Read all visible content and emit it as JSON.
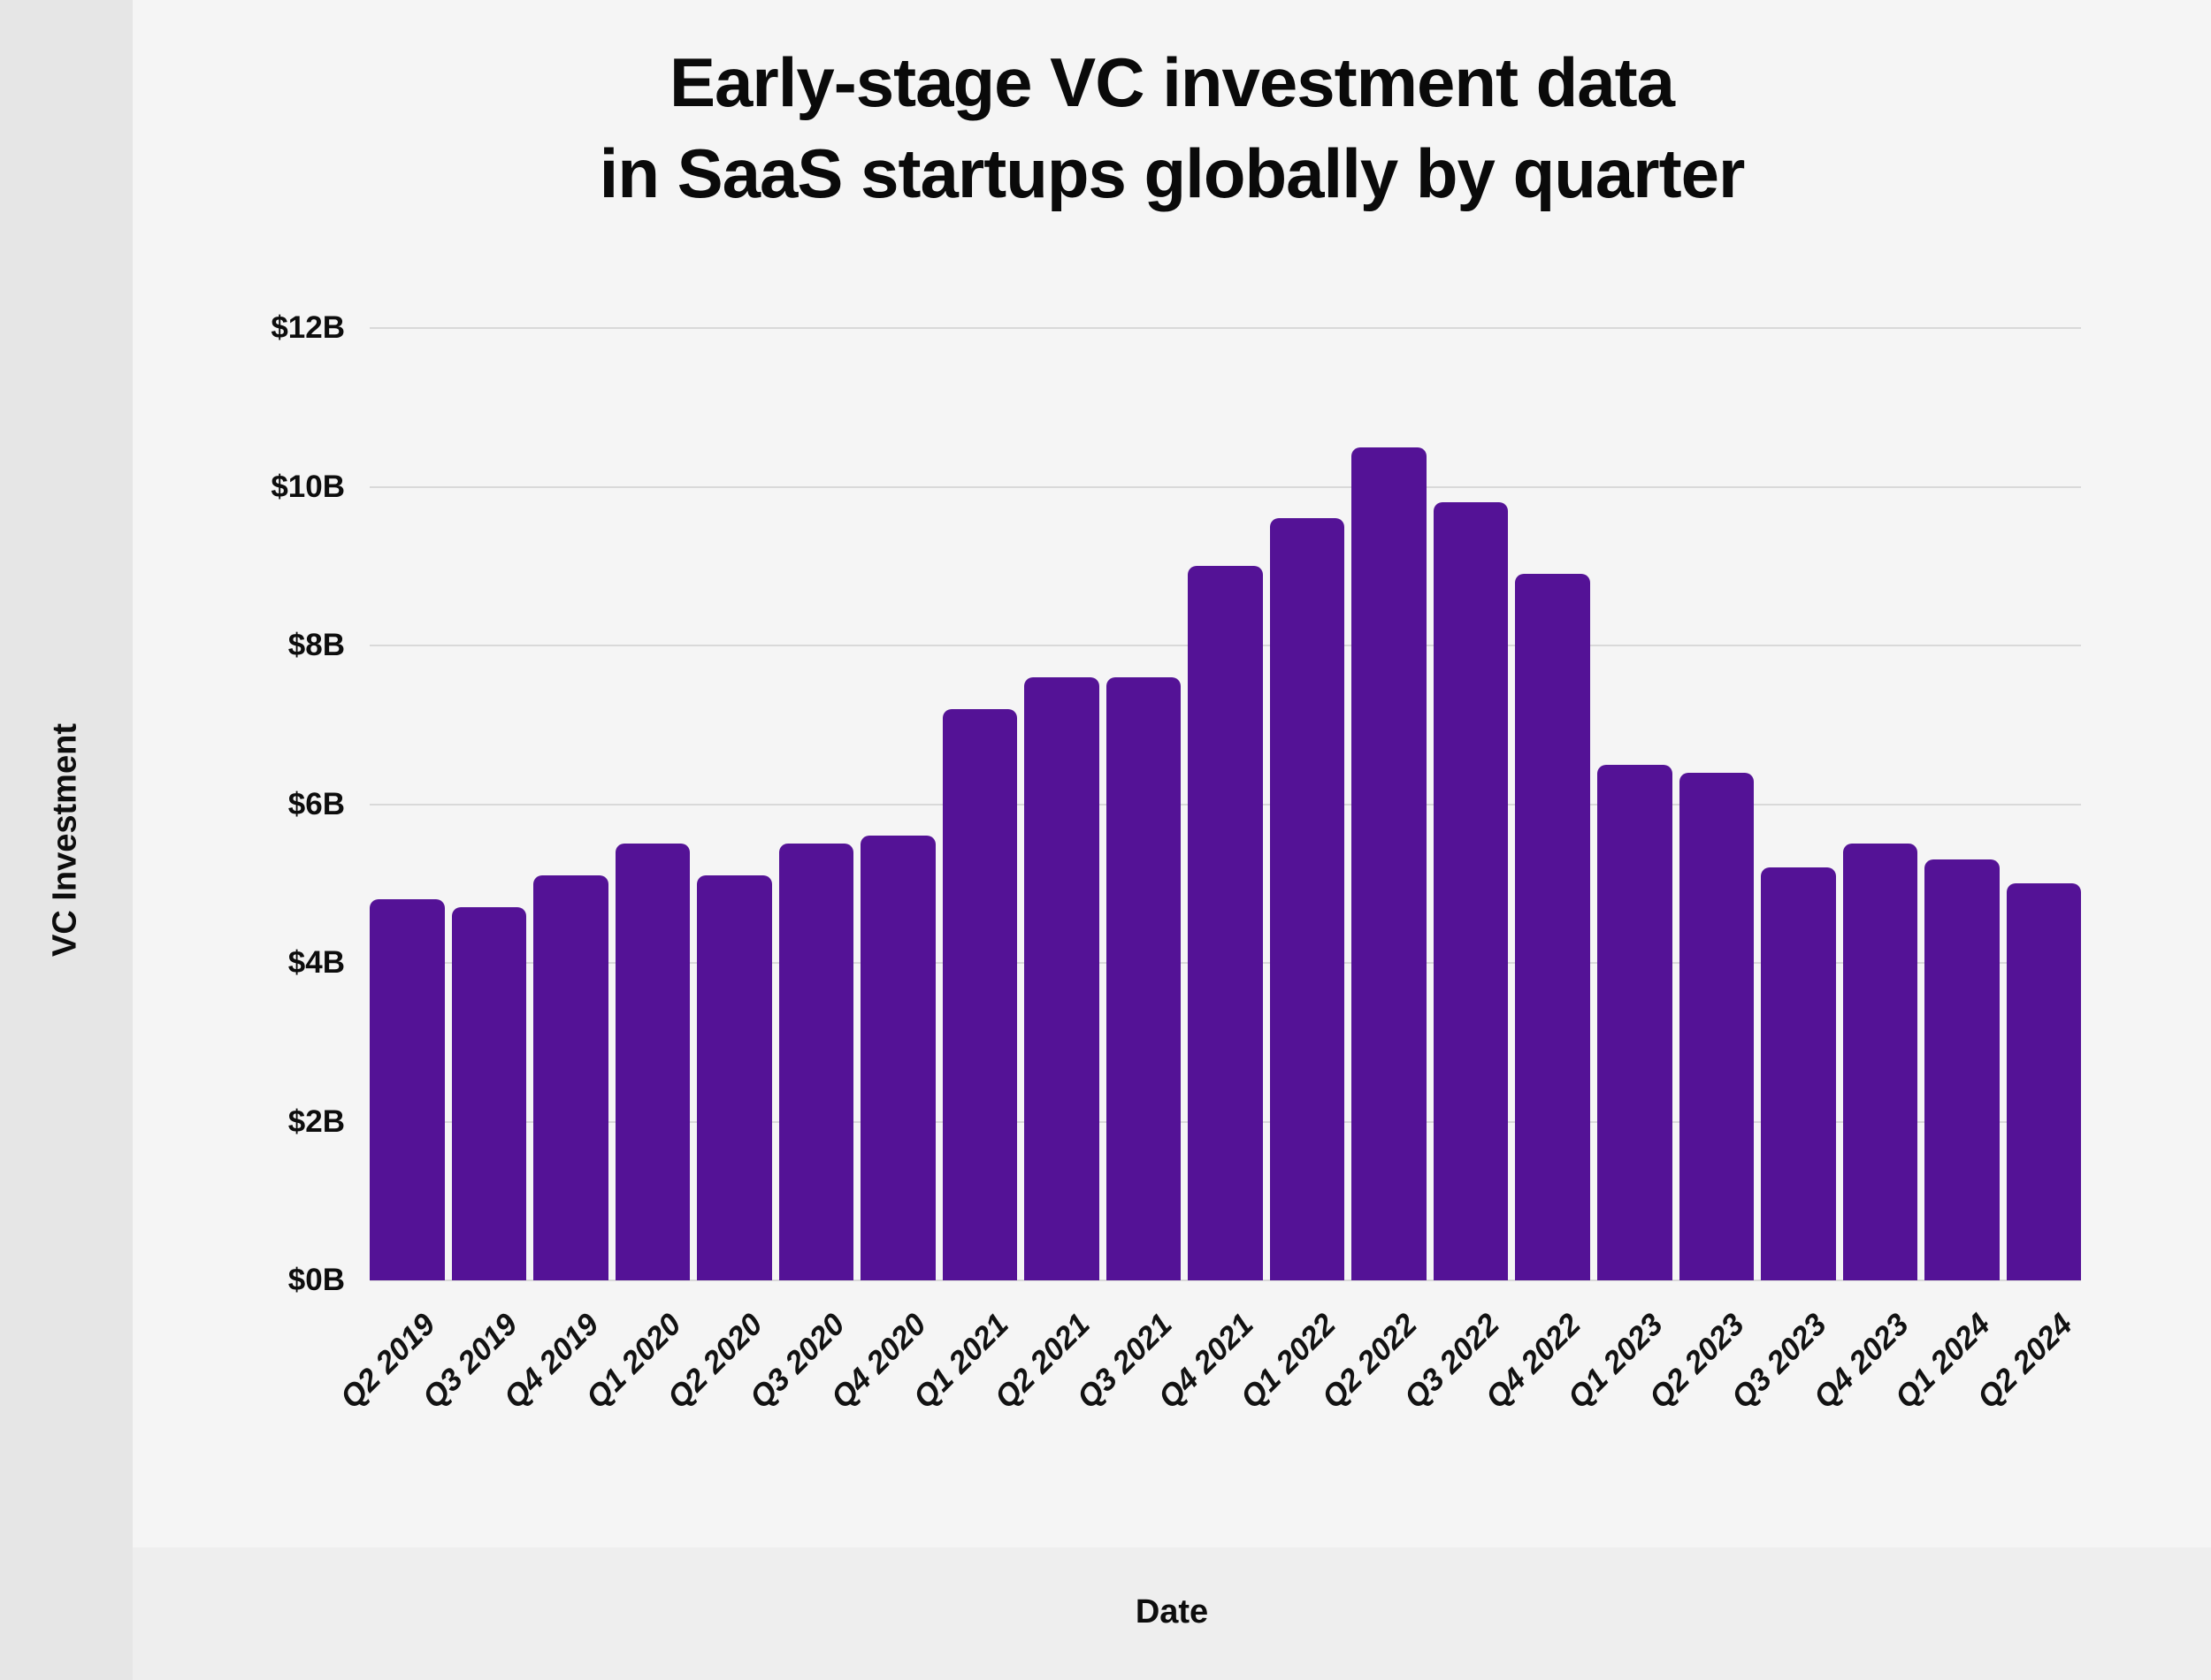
{
  "page": {
    "background_color": "#f5f5f5",
    "left_band_color": "#e6e6e6",
    "bottom_band_color": "#eeeeee"
  },
  "chart_data": {
    "type": "bar",
    "title": "Early-stage VC investment data in SaaS startups globally by quarter",
    "title_lines": [
      "Early-stage VC investment data",
      "in SaaS startups globally by quarter"
    ],
    "xlabel": "Date",
    "ylabel": "VC Investment",
    "categories": [
      "Q2 2019",
      "Q3 2019",
      "Q4 2019",
      "Q1 2020",
      "Q2 2020",
      "Q3 2020",
      "Q4 2020",
      "Q1 2021",
      "Q2 2021",
      "Q3 2021",
      "Q4 2021",
      "Q1 2022",
      "Q2 2022",
      "Q3 2022",
      "Q4 2022",
      "Q1 2023",
      "Q2 2023",
      "Q3 2023",
      "Q4 2023",
      "Q1 2024",
      "Q2 2024"
    ],
    "values": [
      4.8,
      4.7,
      5.1,
      5.5,
      5.1,
      5.5,
      5.6,
      7.2,
      7.6,
      7.6,
      9.0,
      9.6,
      10.5,
      9.8,
      8.9,
      6.5,
      6.4,
      5.2,
      5.5,
      5.3,
      5.0
    ],
    "unit": "billions USD",
    "y_ticks": [
      "$12B",
      "$10B",
      "$8B",
      "$6B",
      "$4B",
      "$2B",
      "$0B"
    ],
    "ylim": [
      0,
      12
    ],
    "grid": true,
    "legend": "none",
    "bar_color": "#541296",
    "gridline_color": "#d9d9d9"
  }
}
